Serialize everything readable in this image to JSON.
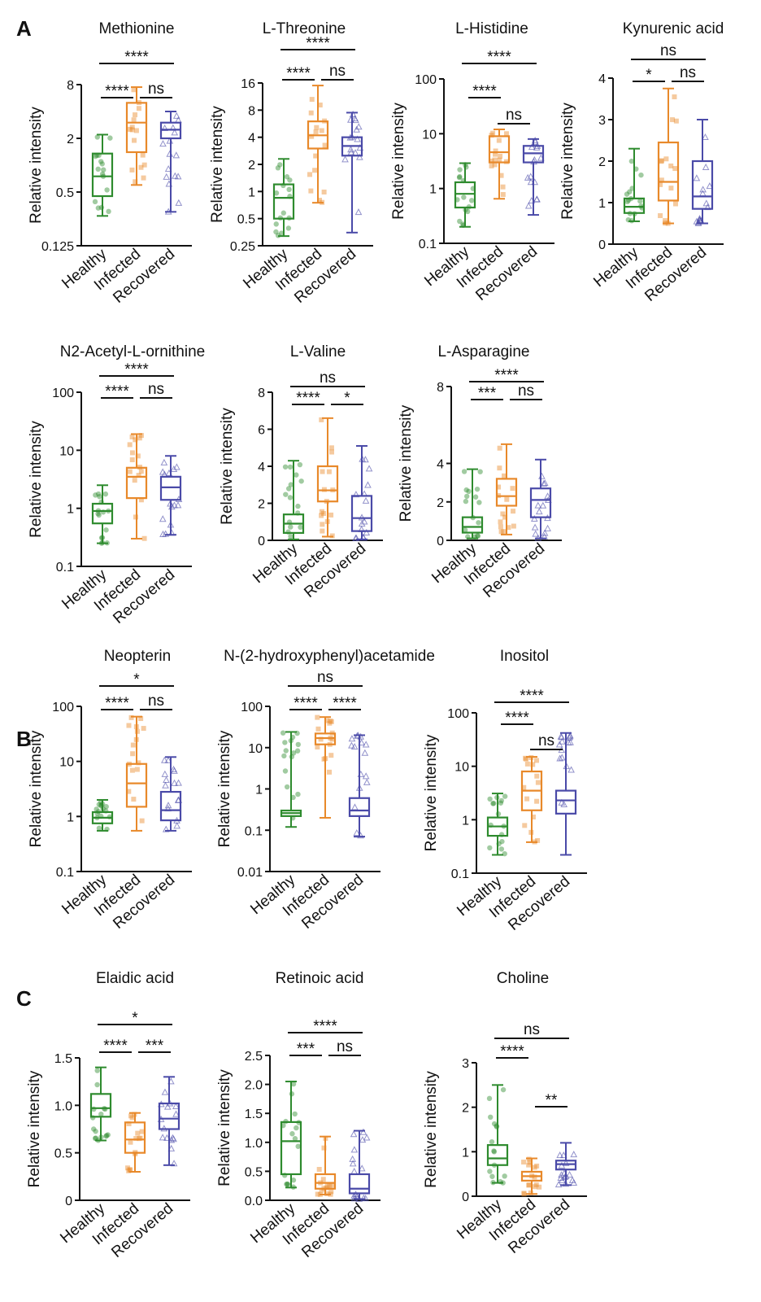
{
  "panel_labels": [
    "A",
    "B",
    "C"
  ],
  "group_labels": [
    "Healthy",
    "Infected",
    "Recovered"
  ],
  "colors": {
    "Healthy": "#2e8b2e",
    "Infected": "#e8892a",
    "Recovered": "#4a4aa8",
    "axis": "#111111"
  },
  "chart_data": [
    {
      "type": "box",
      "panel": "A",
      "title": "Methionine",
      "ylabel": "Relative intensity",
      "xlabel": "",
      "yscale": "log2",
      "ylim": [
        0.125,
        8
      ],
      "yticks": [
        0.125,
        0.5,
        2,
        8
      ],
      "ytick_labels": [
        "0.125",
        "0.5",
        "2",
        "8"
      ],
      "categories": [
        "Healthy",
        "Infected",
        "Recovered"
      ],
      "boxes": [
        {
          "min": 0.27,
          "q1": 0.45,
          "median": 0.75,
          "q3": 1.35,
          "max": 2.2
        },
        {
          "min": 0.6,
          "q1": 1.4,
          "median": 3.0,
          "q3": 5.0,
          "max": 7.5
        },
        {
          "min": 0.3,
          "q1": 2.0,
          "median": 2.5,
          "q3": 3.0,
          "max": 4.0
        }
      ],
      "comparisons": [
        {
          "groups": [
            "Healthy",
            "Recovered"
          ],
          "label": "****"
        },
        {
          "groups": [
            "Healthy",
            "Infected"
          ],
          "label": "****"
        },
        {
          "groups": [
            "Infected",
            "Recovered"
          ],
          "label": "ns"
        }
      ]
    },
    {
      "type": "box",
      "panel": "A",
      "title": "L-Threonine",
      "ylabel": "Relative intensity",
      "xlabel": "",
      "yscale": "log2",
      "ylim": [
        0.25,
        16
      ],
      "yticks": [
        0.25,
        0.5,
        1,
        2,
        4,
        8,
        16
      ],
      "ytick_labels": [
        "0.25",
        "0.5",
        "1",
        "2",
        "4",
        "8",
        "16"
      ],
      "categories": [
        "Healthy",
        "Infected",
        "Recovered"
      ],
      "boxes": [
        {
          "min": 0.32,
          "q1": 0.5,
          "median": 0.85,
          "q3": 1.2,
          "max": 2.3
        },
        {
          "min": 0.75,
          "q1": 3.0,
          "median": 4.2,
          "q3": 6.0,
          "max": 15
        },
        {
          "min": 0.35,
          "q1": 2.5,
          "median": 3.2,
          "q3": 4.0,
          "max": 7.5
        }
      ],
      "comparisons": [
        {
          "groups": [
            "Healthy",
            "Recovered"
          ],
          "label": "****"
        },
        {
          "groups": [
            "Healthy",
            "Infected"
          ],
          "label": "****"
        },
        {
          "groups": [
            "Infected",
            "Recovered"
          ],
          "label": "ns"
        }
      ]
    },
    {
      "type": "box",
      "panel": "A",
      "title": "L-Histidine",
      "ylabel": "Relative intensity",
      "xlabel": "",
      "yscale": "log10",
      "ylim": [
        0.1,
        100
      ],
      "yticks": [
        0.1,
        1,
        10,
        100
      ],
      "ytick_labels": [
        "0.1",
        "1",
        "10",
        "100"
      ],
      "categories": [
        "Healthy",
        "Infected",
        "Recovered"
      ],
      "boxes": [
        {
          "min": 0.2,
          "q1": 0.45,
          "median": 0.8,
          "q3": 1.3,
          "max": 2.9
        },
        {
          "min": 0.65,
          "q1": 3.0,
          "median": 4.6,
          "q3": 9.0,
          "max": 12
        },
        {
          "min": 0.33,
          "q1": 3.0,
          "median": 4.4,
          "q3": 6.0,
          "max": 8.0
        }
      ],
      "comparisons": [
        {
          "groups": [
            "Healthy",
            "Recovered"
          ],
          "label": "****"
        },
        {
          "groups": [
            "Infected",
            "Recovered"
          ],
          "label": "ns"
        },
        {
          "groups": [
            "Healthy",
            "Infected"
          ],
          "label": "****"
        }
      ]
    },
    {
      "type": "box",
      "panel": "A",
      "title": "Kynurenic acid",
      "ylabel": "Relative intensity",
      "xlabel": "",
      "yscale": "linear",
      "ylim": [
        0,
        4
      ],
      "yticks": [
        0,
        1,
        2,
        3,
        4
      ],
      "ytick_labels": [
        "0",
        "1",
        "2",
        "3",
        "4"
      ],
      "categories": [
        "Healthy",
        "Infected",
        "Recovered"
      ],
      "boxes": [
        {
          "min": 0.55,
          "q1": 0.75,
          "median": 0.9,
          "q3": 1.1,
          "max": 2.3
        },
        {
          "min": 0.5,
          "q1": 1.05,
          "median": 1.5,
          "q3": 2.45,
          "max": 3.75
        },
        {
          "min": 0.5,
          "q1": 0.85,
          "median": 1.15,
          "q3": 2.0,
          "max": 3.0
        }
      ],
      "comparisons": [
        {
          "groups": [
            "Healthy",
            "Recovered"
          ],
          "label": "ns"
        },
        {
          "groups": [
            "Healthy",
            "Infected"
          ],
          "label": "*"
        },
        {
          "groups": [
            "Infected",
            "Recovered"
          ],
          "label": "ns"
        }
      ]
    },
    {
      "type": "box",
      "panel": "A",
      "title": "N2-Acetyl-L-ornithine",
      "ylabel": "Relative intensity",
      "xlabel": "",
      "yscale": "log10",
      "ylim": [
        0.1,
        100
      ],
      "yticks": [
        0.1,
        1,
        10,
        100
      ],
      "ytick_labels": [
        "0.1",
        "1",
        "10",
        "100"
      ],
      "categories": [
        "Healthy",
        "Infected",
        "Recovered"
      ],
      "boxes": [
        {
          "min": 0.25,
          "q1": 0.55,
          "median": 0.9,
          "q3": 1.2,
          "max": 2.5
        },
        {
          "min": 0.3,
          "q1": 1.5,
          "median": 3.5,
          "q3": 5.0,
          "max": 19
        },
        {
          "min": 0.35,
          "q1": 1.4,
          "median": 2.3,
          "q3": 3.5,
          "max": 8.0
        }
      ],
      "comparisons": [
        {
          "groups": [
            "Healthy",
            "Recovered"
          ],
          "label": "****"
        },
        {
          "groups": [
            "Healthy",
            "Infected"
          ],
          "label": "****"
        },
        {
          "groups": [
            "Infected",
            "Recovered"
          ],
          "label": "ns"
        }
      ]
    },
    {
      "type": "box",
      "panel": "A",
      "title": "L-Valine",
      "ylabel": "Relative intensity",
      "xlabel": "",
      "yscale": "linear",
      "ylim": [
        0,
        8
      ],
      "yticks": [
        0,
        2,
        4,
        6,
        8
      ],
      "ytick_labels": [
        "0",
        "2",
        "4",
        "6",
        "8"
      ],
      "categories": [
        "Healthy",
        "Infected",
        "Recovered"
      ],
      "boxes": [
        {
          "min": 0.05,
          "q1": 0.4,
          "median": 0.9,
          "q3": 1.4,
          "max": 4.3
        },
        {
          "min": 0.2,
          "q1": 2.1,
          "median": 2.7,
          "q3": 4.0,
          "max": 6.6
        },
        {
          "min": 0.05,
          "q1": 0.5,
          "median": 1.2,
          "q3": 2.4,
          "max": 5.1
        }
      ],
      "comparisons": [
        {
          "groups": [
            "Healthy",
            "Recovered"
          ],
          "label": "ns"
        },
        {
          "groups": [
            "Healthy",
            "Infected"
          ],
          "label": "****"
        },
        {
          "groups": [
            "Infected",
            "Recovered"
          ],
          "label": "*"
        }
      ]
    },
    {
      "type": "box",
      "panel": "A",
      "title": "L-Asparagine",
      "ylabel": "Relative intensity",
      "xlabel": "",
      "yscale": "linear",
      "ylim": [
        0,
        8
      ],
      "yticks": [
        0,
        2,
        4,
        8
      ],
      "ytick_labels": [
        "0",
        "2",
        "4",
        "8"
      ],
      "categories": [
        "Healthy",
        "Infected",
        "Recovered"
      ],
      "boxes": [
        {
          "min": 0.1,
          "q1": 0.4,
          "median": 0.7,
          "q3": 1.2,
          "max": 3.7
        },
        {
          "min": 0.3,
          "q1": 1.8,
          "median": 2.3,
          "q3": 3.2,
          "max": 5.0
        },
        {
          "min": 0.1,
          "q1": 1.2,
          "median": 2.1,
          "q3": 2.7,
          "max": 4.2
        }
      ],
      "comparisons": [
        {
          "groups": [
            "Healthy",
            "Recovered"
          ],
          "label": "****"
        },
        {
          "groups": [
            "Healthy",
            "Infected"
          ],
          "label": "***"
        },
        {
          "groups": [
            "Infected",
            "Recovered"
          ],
          "label": "ns"
        }
      ]
    },
    {
      "type": "box",
      "panel": "B",
      "title": "Neopterin",
      "ylabel": "Relative intensity",
      "xlabel": "",
      "yscale": "log10",
      "ylim": [
        0.1,
        100
      ],
      "yticks": [
        0.1,
        1,
        10,
        100
      ],
      "ytick_labels": [
        "0.1",
        "1",
        "10",
        "100"
      ],
      "categories": [
        "Healthy",
        "Infected",
        "Recovered"
      ],
      "boxes": [
        {
          "min": 0.55,
          "q1": 0.75,
          "median": 0.95,
          "q3": 1.2,
          "max": 2.0
        },
        {
          "min": 0.55,
          "q1": 1.5,
          "median": 4.0,
          "q3": 9.0,
          "max": 65
        },
        {
          "min": 0.55,
          "q1": 0.85,
          "median": 1.3,
          "q3": 2.8,
          "max": 12
        }
      ],
      "comparisons": [
        {
          "groups": [
            "Healthy",
            "Recovered"
          ],
          "label": "*"
        },
        {
          "groups": [
            "Healthy",
            "Infected"
          ],
          "label": "****"
        },
        {
          "groups": [
            "Infected",
            "Recovered"
          ],
          "label": "ns"
        }
      ]
    },
    {
      "type": "box",
      "panel": "B",
      "title": "N-(2-hydroxyphenyl)acetamide",
      "ylabel": "Relative intensity",
      "xlabel": "",
      "yscale": "log10",
      "ylim": [
        0.01,
        100
      ],
      "yticks": [
        0.01,
        0.1,
        1,
        10,
        100
      ],
      "ytick_labels": [
        "0.01",
        "0.1",
        "1",
        "10",
        "100"
      ],
      "categories": [
        "Healthy",
        "Infected",
        "Recovered"
      ],
      "boxes": [
        {
          "min": 0.12,
          "q1": 0.22,
          "median": 0.26,
          "q3": 0.3,
          "max": 24
        },
        {
          "min": 0.2,
          "q1": 12,
          "median": 17,
          "q3": 22,
          "max": 55
        },
        {
          "min": 0.07,
          "q1": 0.22,
          "median": 0.3,
          "q3": 0.6,
          "max": 20
        }
      ],
      "comparisons": [
        {
          "groups": [
            "Healthy",
            "Recovered"
          ],
          "label": "ns"
        },
        {
          "groups": [
            "Healthy",
            "Infected"
          ],
          "label": "****"
        },
        {
          "groups": [
            "Infected",
            "Recovered"
          ],
          "label": "****"
        }
      ]
    },
    {
      "type": "box",
      "panel": "B",
      "title": "Inositol",
      "ylabel": "Relative intensity",
      "xlabel": "",
      "yscale": "log10",
      "ylim": [
        0.1,
        100
      ],
      "yticks": [
        0.1,
        1,
        10,
        100
      ],
      "ytick_labels": [
        "0.1",
        "1",
        "10",
        "100"
      ],
      "categories": [
        "Healthy",
        "Infected",
        "Recovered"
      ],
      "boxes": [
        {
          "min": 0.22,
          "q1": 0.5,
          "median": 0.75,
          "q3": 1.1,
          "max": 3.1
        },
        {
          "min": 0.38,
          "q1": 1.5,
          "median": 3.5,
          "q3": 8.0,
          "max": 15
        },
        {
          "min": 0.22,
          "q1": 1.3,
          "median": 2.3,
          "q3": 3.5,
          "max": 42
        }
      ],
      "comparisons": [
        {
          "groups": [
            "Healthy",
            "Recovered"
          ],
          "label": "****"
        },
        {
          "groups": [
            "Infected",
            "Recovered"
          ],
          "label": "ns"
        },
        {
          "groups": [
            "Healthy",
            "Infected"
          ],
          "label": "****"
        }
      ]
    },
    {
      "type": "box",
      "panel": "C",
      "title": "Elaidic acid",
      "ylabel": "Relative intensity",
      "xlabel": "",
      "yscale": "linear",
      "ylim": [
        0,
        1.5
      ],
      "yticks": [
        0,
        0.5,
        1.0,
        1.5
      ],
      "ytick_labels": [
        "0",
        "0.5",
        "1.0",
        "1.5"
      ],
      "categories": [
        "Healthy",
        "Infected",
        "Recovered"
      ],
      "boxes": [
        {
          "min": 0.63,
          "q1": 0.88,
          "median": 0.97,
          "q3": 1.12,
          "max": 1.4
        },
        {
          "min": 0.3,
          "q1": 0.5,
          "median": 0.64,
          "q3": 0.82,
          "max": 0.92
        },
        {
          "min": 0.37,
          "q1": 0.75,
          "median": 0.86,
          "q3": 1.02,
          "max": 1.3
        }
      ],
      "comparisons": [
        {
          "groups": [
            "Healthy",
            "Recovered"
          ],
          "label": "*"
        },
        {
          "groups": [
            "Healthy",
            "Infected"
          ],
          "label": "****"
        },
        {
          "groups": [
            "Infected",
            "Recovered"
          ],
          "label": "***"
        }
      ]
    },
    {
      "type": "box",
      "panel": "C",
      "title": "Retinoic acid",
      "ylabel": "Relative intensity",
      "xlabel": "",
      "yscale": "linear",
      "ylim": [
        0,
        2.5
      ],
      "yticks": [
        0,
        0.5,
        1.0,
        1.5,
        2.0,
        2.5
      ],
      "ytick_labels": [
        "0.0",
        "0.5",
        "1.0",
        "1.5",
        "2.0",
        "2.5"
      ],
      "categories": [
        "Healthy",
        "Infected",
        "Recovered"
      ],
      "boxes": [
        {
          "min": 0.22,
          "q1": 0.45,
          "median": 1.02,
          "q3": 1.35,
          "max": 2.05
        },
        {
          "min": 0.1,
          "q1": 0.2,
          "median": 0.3,
          "q3": 0.45,
          "max": 1.1
        },
        {
          "min": 0.02,
          "q1": 0.12,
          "median": 0.2,
          "q3": 0.45,
          "max": 1.2
        }
      ],
      "comparisons": [
        {
          "groups": [
            "Healthy",
            "Recovered"
          ],
          "label": "****"
        },
        {
          "groups": [
            "Healthy",
            "Infected"
          ],
          "label": "***"
        },
        {
          "groups": [
            "Infected",
            "Recovered"
          ],
          "label": "ns"
        }
      ]
    },
    {
      "type": "box",
      "panel": "C",
      "title": "Choline",
      "ylabel": "Relative intensity",
      "xlabel": "",
      "yscale": "linear",
      "ylim": [
        0,
        3
      ],
      "yticks": [
        0,
        1,
        2,
        3
      ],
      "ytick_labels": [
        "0",
        "1",
        "2",
        "3"
      ],
      "categories": [
        "Healthy",
        "Infected",
        "Recovered"
      ],
      "boxes": [
        {
          "min": 0.3,
          "q1": 0.7,
          "median": 0.85,
          "q3": 1.15,
          "max": 2.5
        },
        {
          "min": 0.05,
          "q1": 0.35,
          "median": 0.45,
          "q3": 0.55,
          "max": 0.85
        },
        {
          "min": 0.25,
          "q1": 0.6,
          "median": 0.72,
          "q3": 0.8,
          "max": 1.2
        }
      ],
      "comparisons": [
        {
          "groups": [
            "Healthy",
            "Recovered"
          ],
          "label": "ns"
        },
        {
          "groups": [
            "Healthy",
            "Infected"
          ],
          "label": "****"
        },
        {
          "groups": [
            "Infected",
            "Recovered"
          ],
          "label": "**"
        }
      ]
    }
  ]
}
